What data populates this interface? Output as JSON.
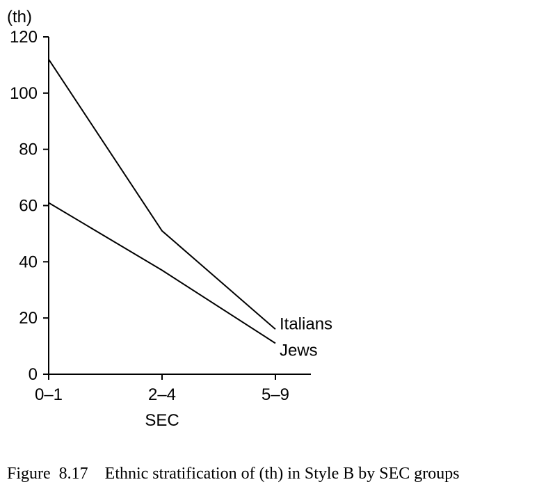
{
  "chart_data": {
    "type": "line",
    "title": "",
    "xlabel": "SEC",
    "ylabel": "(th)",
    "categories": [
      "0–1",
      "2–4",
      "5–9"
    ],
    "series": [
      {
        "name": "Italians",
        "values": [
          112,
          51,
          16
        ]
      },
      {
        "name": "Jews",
        "values": [
          61,
          37,
          11
        ]
      }
    ],
    "ylim": [
      0,
      120
    ],
    "yticks": [
      0,
      20,
      40,
      60,
      80,
      100,
      120
    ],
    "grid": false,
    "legend": "series labels at line ends"
  },
  "caption": "Figure  8.17    Ethnic stratification of (th) in Style B by SEC groups"
}
